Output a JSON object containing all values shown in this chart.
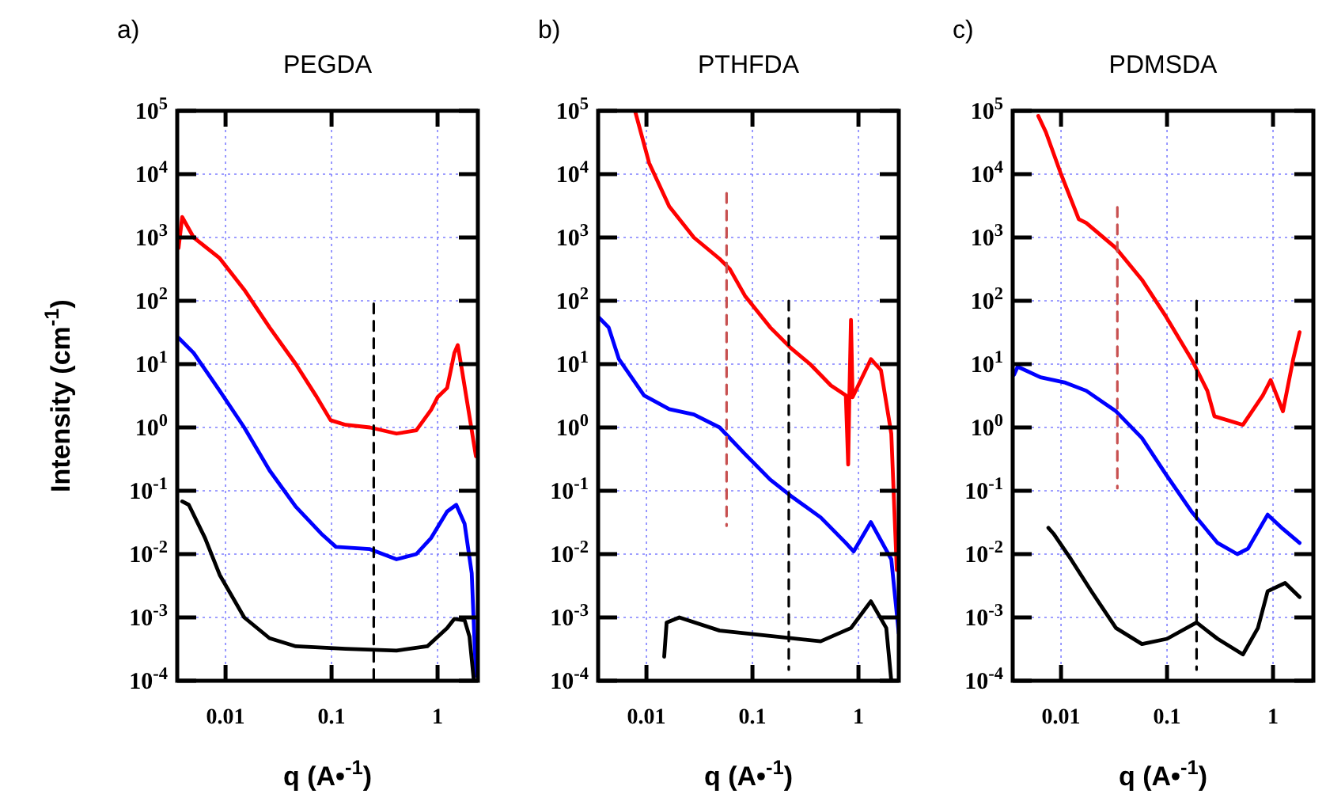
{
  "chart_data": [
    {
      "type": "line",
      "title": "PEGDA",
      "xlabel": "q (A•$^{-1}$)",
      "ylabel": "Intensity (cm$^{-1}$)",
      "annotations": [
        "a)"
      ],
      "log": "xy",
      "grid": true,
      "xlim": [
        0.0035,
        2.4
      ],
      "ylim": [
        0.0001,
        100000
      ],
      "xticks": [
        0.01,
        0.1,
        1
      ],
      "yticks": [
        {
          "value": 0.0001,
          "label": "10$^{-4}$"
        },
        {
          "value": 0.001,
          "label": "10$^{-3}$"
        },
        {
          "value": 0.01,
          "label": "10$^{-2}$"
        },
        {
          "value": 0.1,
          "label": "10$^{-1}$"
        },
        {
          "value": 1,
          "label": "10$^{0}$"
        },
        {
          "value": 10,
          "label": "10$^{1}$"
        },
        {
          "value": 100,
          "label": "10$^{2}$"
        },
        {
          "value": 1000,
          "label": "10$^{3}$"
        },
        {
          "value": 10000,
          "label": "10$^{4}$"
        },
        {
          "value": 100000,
          "label": "10$^{5}$"
        }
      ],
      "series": [
        {
          "color": "#ff0000",
          "x": [
            0.0036,
            0.0039,
            0.005,
            0.0088,
            0.015,
            0.026,
            0.046,
            0.071,
            0.098,
            0.136,
            0.23,
            0.41,
            0.63,
            0.87,
            1.0,
            1.23,
            1.44,
            1.55,
            1.7,
            2.0,
            2.3
          ],
          "values": [
            680,
            2100,
            1000,
            470,
            150,
            38,
            10,
            3.2,
            1.3,
            1.1,
            1.0,
            0.8,
            0.9,
            1.9,
            3,
            4.2,
            15,
            20,
            8,
            1.5,
            0.35
          ]
        },
        {
          "color": "#0000ff",
          "x": [
            0.0036,
            0.005,
            0.0088,
            0.015,
            0.026,
            0.046,
            0.08,
            0.11,
            0.23,
            0.41,
            0.63,
            0.87,
            1.23,
            1.5,
            1.8,
            2.1,
            2.3
          ],
          "values": [
            26,
            15,
            3.8,
            1,
            0.21,
            0.056,
            0.021,
            0.013,
            0.012,
            0.0083,
            0.01,
            0.018,
            0.047,
            0.06,
            0.03,
            0.005,
            0.00012
          ]
        },
        {
          "color": "#000000",
          "x": [
            0.0039,
            0.0045,
            0.0064,
            0.0088,
            0.015,
            0.026,
            0.046,
            0.136,
            0.41,
            0.8,
            1.23,
            1.44,
            1.8,
            2.0,
            2.2
          ],
          "values": [
            0.068,
            0.06,
            0.018,
            0.0047,
            0.001,
            0.00047,
            0.00035,
            0.00032,
            0.0003,
            0.00035,
            0.00068,
            0.00095,
            0.0009,
            0.0005,
            0.0001
          ]
        },
        {
          "type": "line",
          "line_style": "dashed",
          "color": "#000000",
          "x": [
            0.25,
            0.25
          ],
          "values": [
            90,
            0.0001
          ]
        }
      ]
    },
    {
      "type": "line",
      "title": "PTHFDA",
      "xlabel": "q (A•$^{-1}$)",
      "annotations": [
        "b)"
      ],
      "log": "xy",
      "grid": true,
      "xlim": [
        0.0035,
        2.4
      ],
      "ylim": [
        0.0001,
        100000
      ],
      "xticks": [
        0.01,
        0.1,
        1
      ],
      "yticks": [
        {
          "value": 0.0001,
          "label": "10$^{-4}$"
        },
        {
          "value": 0.001,
          "label": "10$^{-3}$"
        },
        {
          "value": 0.01,
          "label": "10$^{-2}$"
        },
        {
          "value": 0.1,
          "label": "10$^{-1}$"
        },
        {
          "value": 1,
          "label": "10$^{0}$"
        },
        {
          "value": 10,
          "label": "10$^{1}$"
        },
        {
          "value": 100,
          "label": "10$^{2}$"
        },
        {
          "value": 1000,
          "label": "10$^{3}$"
        },
        {
          "value": 10000,
          "label": "10$^{4}$"
        },
        {
          "value": 100000,
          "label": "10$^{5}$"
        }
      ],
      "series": [
        {
          "color": "#ff0000",
          "x": [
            0.0078,
            0.0106,
            0.0164,
            0.028,
            0.049,
            0.061,
            0.085,
            0.147,
            0.23,
            0.35,
            0.55,
            0.76,
            0.8,
            0.82,
            0.85,
            0.88,
            1.31,
            1.63,
            2.04,
            2.3
          ],
          "values": [
            100000,
            15000,
            3100,
            1000,
            460,
            320,
            120,
            38,
            18,
            10,
            4.6,
            3.2,
            0.26,
            3,
            50,
            3,
            12,
            8,
            0.8,
            0.0056
          ]
        },
        {
          "color": "#0000ff",
          "x": [
            0.0035,
            0.0044,
            0.0055,
            0.0095,
            0.0164,
            0.028,
            0.049,
            0.085,
            0.147,
            0.23,
            0.44,
            0.76,
            0.9,
            1.31,
            2.04,
            2.4
          ],
          "values": [
            56,
            38,
            12,
            3.2,
            1.95,
            1.6,
            1.0,
            0.38,
            0.15,
            0.083,
            0.038,
            0.015,
            0.011,
            0.032,
            0.0083,
            0.00056
          ]
        },
        {
          "color": "#000000",
          "x": [
            0.0147,
            0.0155,
            0.0204,
            0.049,
            0.147,
            0.44,
            0.85,
            1.31,
            1.83,
            2.04
          ],
          "values": [
            0.00024,
            0.00083,
            0.001,
            0.00062,
            0.00051,
            0.00042,
            0.00068,
            0.0018,
            0.00068,
            0.0001
          ]
        },
        {
          "type": "line",
          "line_style": "dashed",
          "color": "#c85050",
          "x": [
            0.057,
            0.057
          ],
          "values": [
            5000,
            0.028
          ]
        },
        {
          "type": "line",
          "line_style": "dashed",
          "color": "#000000",
          "x": [
            0.22,
            0.22
          ],
          "values": [
            100,
            0.00015
          ]
        }
      ]
    },
    {
      "type": "line",
      "title": "PDMSDA",
      "xlabel": "q (A•$^{-1}$)",
      "annotations": [
        "c)"
      ],
      "log": "xy",
      "grid": true,
      "xlim": [
        0.0035,
        2.4
      ],
      "ylim": [
        0.0001,
        100000
      ],
      "xticks": [
        0.01,
        0.1,
        1
      ],
      "yticks": [
        {
          "value": 0.0001,
          "label": "10$^{-4}$"
        },
        {
          "value": 0.001,
          "label": "10$^{-3}$"
        },
        {
          "value": 0.01,
          "label": "10$^{-2}$"
        },
        {
          "value": 0.1,
          "label": "10$^{-1}$"
        },
        {
          "value": 1,
          "label": "10$^{0}$"
        },
        {
          "value": 10,
          "label": "10$^{1}$"
        },
        {
          "value": 100,
          "label": "10$^{2}$"
        },
        {
          "value": 1000,
          "label": "10$^{3}$"
        },
        {
          "value": 10000,
          "label": "10$^{4}$"
        },
        {
          "value": 100000,
          "label": "10$^{5}$"
        }
      ],
      "series": [
        {
          "color": "#ff0000",
          "x": [
            0.0061,
            0.0072,
            0.01,
            0.0147,
            0.0173,
            0.033,
            0.058,
            0.098,
            0.17,
            0.24,
            0.28,
            0.52,
            0.8,
            0.95,
            1.24,
            1.55,
            1.78
          ],
          "values": [
            83000,
            46000,
            10000,
            1950,
            1700,
            680,
            215,
            56,
            12,
            3.8,
            1.5,
            1.1,
            3.2,
            5.6,
            1.8,
            12,
            32
          ]
        },
        {
          "color": "#0000ff",
          "x": [
            0.0036,
            0.0039,
            0.0064,
            0.011,
            0.0173,
            0.033,
            0.058,
            0.098,
            0.17,
            0.3,
            0.46,
            0.58,
            0.89,
            1.24,
            1.78
          ],
          "values": [
            6.8,
            9.1,
            6.2,
            5.1,
            3.8,
            1.8,
            0.68,
            0.18,
            0.047,
            0.015,
            0.01,
            0.0122,
            0.042,
            0.025,
            0.015
          ]
        },
        {
          "color": "#000000",
          "x": [
            0.0076,
            0.0085,
            0.0124,
            0.0193,
            0.033,
            0.058,
            0.1,
            0.19,
            0.3,
            0.52,
            0.72,
            0.89,
            1.3,
            1.78
          ],
          "values": [
            0.026,
            0.021,
            0.0083,
            0.0026,
            0.00068,
            0.00038,
            0.00046,
            0.00083,
            0.00046,
            0.00026,
            0.00068,
            0.0026,
            0.0035,
            0.0021
          ]
        },
        {
          "type": "line",
          "line_style": "dashed",
          "color": "#c85050",
          "x": [
            0.034,
            0.034
          ],
          "values": [
            3000,
            0.11
          ]
        },
        {
          "type": "line",
          "line_style": "dashed",
          "color": "#000000",
          "x": [
            0.19,
            0.19
          ],
          "values": [
            100,
            0.00015
          ]
        }
      ]
    }
  ]
}
